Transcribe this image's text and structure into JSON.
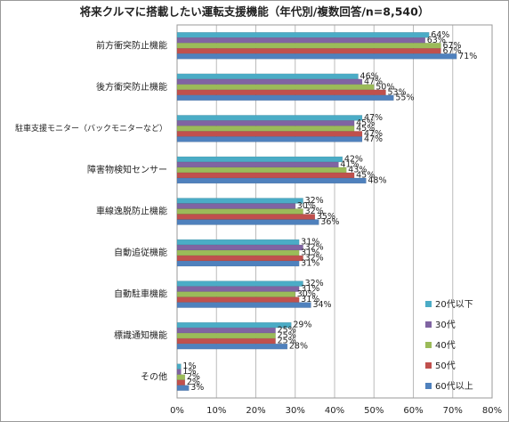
{
  "chart_data": {
    "type": "bar",
    "orientation": "horizontal",
    "title": "将来クルマに搭載したい運転支援機能（年代別/複数回答/n=8,540）",
    "categories": [
      "前方衝突防止機能",
      "後方衝突防止機能",
      "駐車支援モニター（バックモニターなど）",
      "障害物検知センサー",
      "車線逸脱防止機能",
      "自動追従機能",
      "自動駐車機能",
      "標識通知機能",
      "その他"
    ],
    "series": [
      {
        "name": "20代以下",
        "color": "#4bacc6",
        "values": [
          64,
          46,
          47,
          42,
          32,
          31,
          32,
          29,
          1
        ],
        "value_labels": [
          "64%",
          "46%",
          "47%",
          "42%",
          "32%",
          "31%",
          "32%",
          "29%",
          "1%"
        ]
      },
      {
        "name": "30代",
        "color": "#8064a2",
        "values": [
          63,
          47,
          45,
          41,
          30,
          32,
          31,
          25,
          1
        ],
        "value_labels": [
          "63%",
          "47%",
          "45%",
          "41%",
          "30%",
          "32%",
          "31%",
          "25%",
          "1%"
        ]
      },
      {
        "name": "40代",
        "color": "#9bbb59",
        "values": [
          67,
          50,
          45,
          43,
          32,
          31,
          30,
          25,
          2
        ],
        "value_labels": [
          "67%",
          "50%",
          "45%",
          "43%",
          "32%",
          "31%",
          "30%",
          "25%",
          "2%"
        ]
      },
      {
        "name": "50代",
        "color": "#c0504d",
        "values": [
          67,
          53,
          47,
          45,
          35,
          32,
          31,
          25,
          2
        ],
        "value_labels": [
          "67%",
          "53%",
          "47%",
          "45%",
          "35%",
          "32%",
          "31%",
          "25%",
          "2%"
        ]
      },
      {
        "name": "60代以上",
        "color": "#4f81bd",
        "values": [
          71,
          55,
          47,
          48,
          36,
          31,
          34,
          28,
          3
        ],
        "value_labels": [
          "71%",
          "55%",
          "47%",
          "48%",
          "36%",
          "31%",
          "34%",
          "28%",
          "3%"
        ]
      }
    ],
    "xlim": [
      0,
      80
    ],
    "xticks": [
      {
        "value": 0,
        "label": "0%"
      },
      {
        "value": 10,
        "label": "10%"
      },
      {
        "value": 20,
        "label": "20%"
      },
      {
        "value": 30,
        "label": "30%"
      },
      {
        "value": 40,
        "label": "40%"
      },
      {
        "value": 50,
        "label": "50%"
      },
      {
        "value": 60,
        "label": "60%"
      },
      {
        "value": 70,
        "label": "70%"
      },
      {
        "value": 80,
        "label": "80%"
      }
    ],
    "grid": true,
    "legend": "lower right"
  }
}
